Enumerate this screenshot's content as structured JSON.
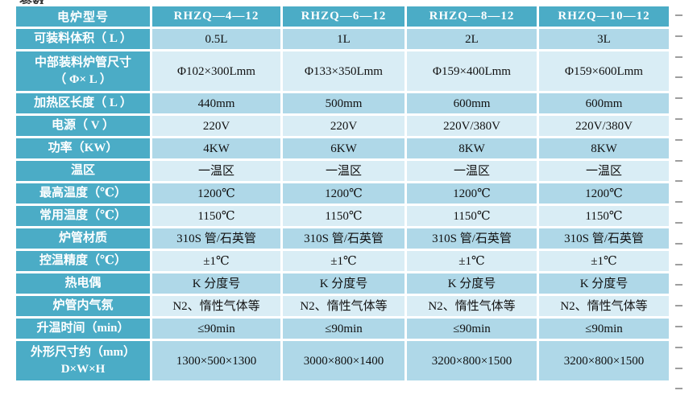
{
  "page": {
    "cutoff_text_top_left": "参数"
  },
  "colors": {
    "header_teal": "#4BACC6",
    "row_medium_blue": "#AFD8E8",
    "row_light_blue": "#D9EDF5",
    "data_text": "#111111",
    "marker_gray": "#9E9E9E"
  },
  "table": {
    "header": {
      "label": "电炉型号",
      "models": [
        "RHZQ—4—12",
        "RHZQ—6—12",
        "RHZQ—8—12",
        "RHZQ—10—12"
      ]
    },
    "rows": [
      {
        "label": "可装料体积（ L ）",
        "shade": "medium",
        "values": [
          "0.5L",
          "1L",
          "2L",
          "3L"
        ]
      },
      {
        "label": "中部装料炉管尺寸\n（ Φ× L ）",
        "shade": "light",
        "values": [
          "Φ102×300Lmm",
          "Φ133×350Lmm",
          "Φ159×400Lmm",
          "Φ159×600Lmm"
        ]
      },
      {
        "label": "加热区长度（ L ）",
        "shade": "medium",
        "values": [
          "440mm",
          "500mm",
          "600mm",
          "600mm"
        ]
      },
      {
        "label": "电源（ V ）",
        "shade": "light",
        "values": [
          "220V",
          "220V",
          "220V/380V",
          "220V/380V"
        ]
      },
      {
        "label": "功率（KW）",
        "shade": "medium",
        "values": [
          "4KW",
          "6KW",
          "8KW",
          "8KW"
        ]
      },
      {
        "label": "温区",
        "shade": "light",
        "values": [
          "一温区",
          "一温区",
          "一温区",
          "一温区"
        ]
      },
      {
        "label": "最高温度（℃）",
        "shade": "medium",
        "values": [
          "1200℃",
          "1200℃",
          "1200℃",
          "1200℃"
        ]
      },
      {
        "label": "常用温度（℃）",
        "shade": "light",
        "values": [
          "1150℃",
          "1150℃",
          "1150℃",
          "1150℃"
        ]
      },
      {
        "label": "炉管材质",
        "shade": "medium",
        "values": [
          "310S 管/石英管",
          "310S 管/石英管",
          "310S 管/石英管",
          "310S 管/石英管"
        ]
      },
      {
        "label": "控温精度（℃）",
        "shade": "light",
        "values": [
          "±1℃",
          "±1℃",
          "±1℃",
          "±1℃"
        ]
      },
      {
        "label": "热电偶",
        "shade": "medium",
        "values": [
          "K 分度号",
          "K 分度号",
          "K 分度号",
          "K 分度号"
        ]
      },
      {
        "label": "炉管内气氛",
        "shade": "light",
        "values": [
          "N2、惰性气体等",
          "N2、惰性气体等",
          "N2、惰性气体等",
          "N2、惰性气体等"
        ]
      },
      {
        "label": "升温时间（min）",
        "shade": "medium",
        "values": [
          "≤90min",
          "≤90min",
          "≤90min",
          "≤90min"
        ]
      },
      {
        "label": "外形尺寸约（mm）\nD×W×H",
        "shade": "medium",
        "values": [
          "1300×500×1300",
          "3000×800×1400",
          "3200×800×1500",
          "3200×800×1500"
        ]
      }
    ]
  }
}
